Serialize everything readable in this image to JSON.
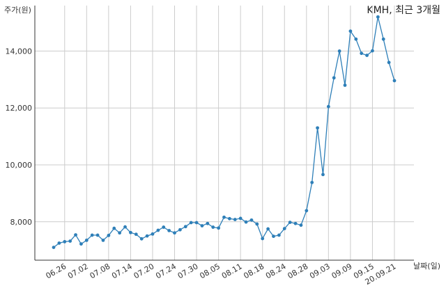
{
  "chart_data": {
    "type": "line",
    "title": "KMH, 최근 3개월",
    "ylabel": "주가(원)",
    "xlabel": "날짜(일)",
    "ylim": [
      6650,
      15600
    ],
    "yticks": [
      {
        "value": 8000,
        "label": "8,000"
      },
      {
        "value": 10000,
        "label": "10,000"
      },
      {
        "value": 12000,
        "label": "12,000"
      },
      {
        "value": 14000,
        "label": "14,000"
      }
    ],
    "xticks": [
      {
        "index": 2,
        "label": "06.26"
      },
      {
        "index": 6,
        "label": "07.02"
      },
      {
        "index": 10,
        "label": "07.08"
      },
      {
        "index": 14,
        "label": "07.14"
      },
      {
        "index": 18,
        "label": "07.20"
      },
      {
        "index": 22,
        "label": "07.24"
      },
      {
        "index": 26,
        "label": "07.30"
      },
      {
        "index": 30,
        "label": "08.05"
      },
      {
        "index": 34,
        "label": "08.11"
      },
      {
        "index": 38,
        "label": "08.18"
      },
      {
        "index": 42,
        "label": "08.24"
      },
      {
        "index": 46,
        "label": "08.28"
      },
      {
        "index": 50,
        "label": "09.03"
      },
      {
        "index": 54,
        "label": "09.09"
      },
      {
        "index": 58,
        "label": "09.15"
      },
      {
        "index": 62,
        "label": "20.09.21"
      }
    ],
    "color": "#2e7fb8",
    "grid": true,
    "values": [
      7100,
      7250,
      7300,
      7320,
      7540,
      7220,
      7350,
      7530,
      7530,
      7350,
      7520,
      7770,
      7610,
      7820,
      7620,
      7560,
      7400,
      7500,
      7570,
      7700,
      7810,
      7690,
      7610,
      7720,
      7830,
      7970,
      7970,
      7860,
      7940,
      7810,
      7780,
      8160,
      8110,
      8080,
      8120,
      7990,
      8060,
      7920,
      7410,
      7750,
      7490,
      7530,
      7760,
      7980,
      7940,
      7880,
      8390,
      9380,
      11300,
      9660,
      12050,
      13060,
      14000,
      12800,
      14700,
      14420,
      13920,
      13850,
      14010,
      15200,
      14420,
      13600,
      12960
    ]
  }
}
